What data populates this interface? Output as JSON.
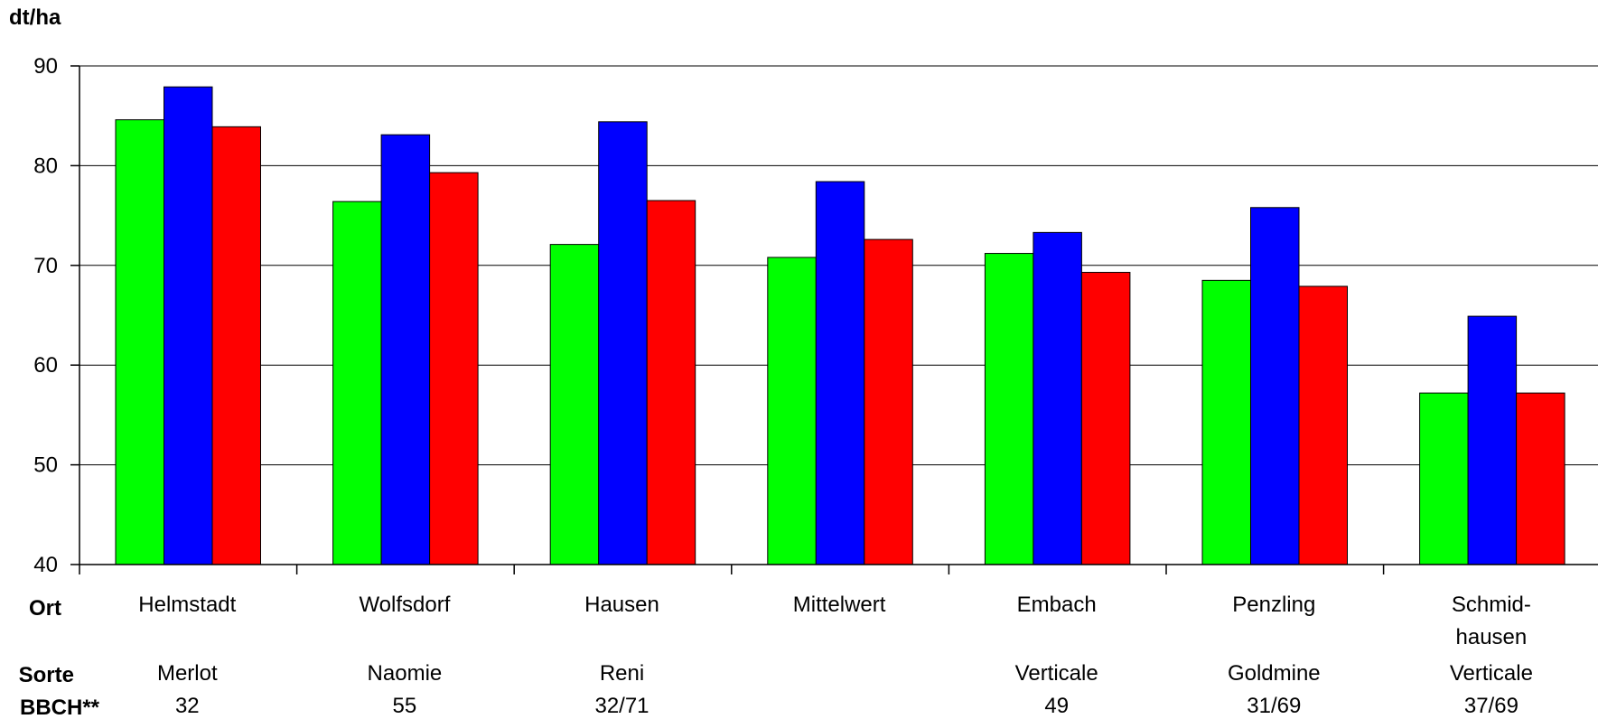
{
  "chart_data": {
    "type": "bar",
    "ylabel": "dt/ha",
    "ylim": [
      40,
      90
    ],
    "yticks": [
      40,
      50,
      60,
      70,
      80,
      90
    ],
    "grid": true,
    "row_labels": {
      "ort": "Ort",
      "sorte": "Sorte",
      "bbch": "BBCH**"
    },
    "categories": [
      {
        "ort": [
          "Helmstadt"
        ],
        "sorte": "Merlot",
        "bbch": "32"
      },
      {
        "ort": [
          "Wolfsdorf"
        ],
        "sorte": "Naomie",
        "bbch": "55"
      },
      {
        "ort": [
          "Hausen"
        ],
        "sorte": "Reni",
        "bbch": "32/71"
      },
      {
        "ort": [
          "Mittelwert"
        ],
        "sorte": "",
        "bbch": ""
      },
      {
        "ort": [
          "Embach"
        ],
        "sorte": "Verticale",
        "bbch": "49"
      },
      {
        "ort": [
          "Penzling"
        ],
        "sorte": "Goldmine",
        "bbch": "31/69"
      },
      {
        "ort": [
          "Schmid-",
          "hausen"
        ],
        "sorte": "Verticale",
        "bbch": "37/69"
      }
    ],
    "series": [
      {
        "color": "#00ff00",
        "values": [
          84.6,
          76.4,
          72.1,
          70.8,
          71.2,
          68.5,
          57.2
        ]
      },
      {
        "color": "#0000ff",
        "values": [
          87.9,
          83.1,
          84.4,
          78.4,
          73.3,
          75.8,
          64.9
        ]
      },
      {
        "color": "#ff0000",
        "values": [
          83.9,
          79.3,
          76.5,
          72.6,
          69.3,
          67.9,
          57.2
        ]
      }
    ]
  }
}
